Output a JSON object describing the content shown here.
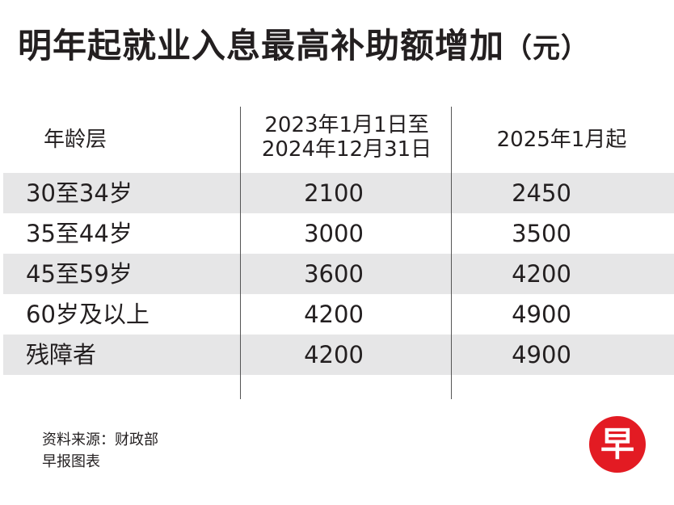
{
  "title": {
    "main": "明年起就业入息最高补助额增加",
    "unit": "（元）"
  },
  "table": {
    "headers": [
      "年龄层",
      "2023年1月1日至",
      "2024年12月31日",
      "2025年1月起"
    ],
    "rows": [
      [
        "30至34岁",
        "2100",
        "2450"
      ],
      [
        "35至44岁",
        "3000",
        "3500"
      ],
      [
        "45至59岁",
        "3600",
        "4200"
      ],
      [
        "60岁及以上",
        "4200",
        "4900"
      ],
      [
        "残障者",
        "4200",
        "4900"
      ]
    ]
  },
  "source": {
    "line1": "资料来源：财政部",
    "line2": "早报图表"
  },
  "logo": {
    "char": "早",
    "color": "#e31b23"
  },
  "colors": {
    "row_shade": "#e6e6e7",
    "text": "#231f20"
  }
}
